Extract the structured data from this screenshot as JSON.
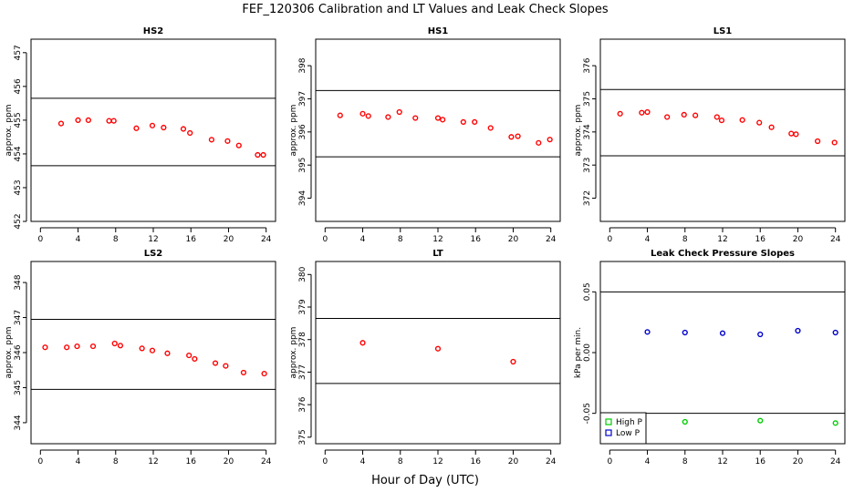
{
  "title": "FEF_120306  Calibration and LT Values and Leak Check Slopes",
  "xlabel": "Hour of Day (UTC)",
  "chart_data": [
    {
      "type": "scatter",
      "title": "HS2",
      "ylabel": "approx. ppm",
      "xlim": [
        -1,
        25
      ],
      "ylim": [
        452,
        457.4
      ],
      "xticks": [
        0,
        4,
        8,
        12,
        16,
        20,
        24
      ],
      "yticks": [
        452,
        453,
        454,
        455,
        456,
        457
      ],
      "hlines": [
        453.65,
        455.65
      ],
      "series": [
        {
          "color": "#ff0000",
          "x": [
            2.2,
            4.0,
            5.1,
            7.3,
            7.8,
            10.2,
            11.9,
            13.1,
            15.2,
            15.9,
            18.2,
            19.9,
            21.1,
            23.1,
            23.7
          ],
          "y": [
            454.9,
            455.0,
            455.0,
            454.98,
            454.98,
            454.76,
            454.84,
            454.78,
            454.74,
            454.62,
            454.42,
            454.38,
            454.25,
            453.97,
            453.97
          ]
        }
      ]
    },
    {
      "type": "scatter",
      "title": "HS1",
      "ylabel": "approx. ppm",
      "xlim": [
        -1,
        25
      ],
      "ylim": [
        393.3,
        398.8
      ],
      "xticks": [
        0,
        4,
        8,
        12,
        16,
        20,
        24
      ],
      "yticks": [
        394,
        395,
        396,
        397,
        398
      ],
      "hlines": [
        395.25,
        397.25
      ],
      "series": [
        {
          "color": "#ff0000",
          "x": [
            1.6,
            4.0,
            4.6,
            6.7,
            7.9,
            9.6,
            12.0,
            12.5,
            14.7,
            15.9,
            17.6,
            19.8,
            20.5,
            22.7,
            23.9
          ],
          "y": [
            396.5,
            396.55,
            396.48,
            396.45,
            396.6,
            396.42,
            396.42,
            396.37,
            396.3,
            396.3,
            396.12,
            395.85,
            395.87,
            395.67,
            395.77
          ]
        }
      ]
    },
    {
      "type": "scatter",
      "title": "LS1",
      "ylabel": "approx. ppm",
      "xlim": [
        -1,
        25
      ],
      "ylim": [
        371.3,
        376.8
      ],
      "xticks": [
        0,
        4,
        8,
        12,
        16,
        20,
        24
      ],
      "yticks": [
        372,
        373,
        374,
        375,
        376
      ],
      "hlines": [
        373.28,
        375.28
      ],
      "series": [
        {
          "color": "#ff0000",
          "x": [
            1.1,
            3.4,
            4.0,
            6.1,
            7.9,
            9.1,
            11.4,
            11.9,
            14.1,
            15.9,
            17.2,
            19.3,
            19.8,
            22.1,
            23.9
          ],
          "y": [
            374.55,
            374.58,
            374.6,
            374.45,
            374.52,
            374.5,
            374.45,
            374.35,
            374.36,
            374.28,
            374.14,
            373.95,
            373.93,
            373.72,
            373.68
          ]
        }
      ]
    },
    {
      "type": "scatter",
      "title": "LS2",
      "ylabel": "approx. ppm",
      "xlim": [
        -1,
        25
      ],
      "ylim": [
        343.4,
        348.6
      ],
      "xticks": [
        0,
        4,
        8,
        12,
        16,
        20,
        24
      ],
      "yticks": [
        344,
        345,
        346,
        347,
        348
      ],
      "hlines": [
        344.95,
        346.95
      ],
      "series": [
        {
          "color": "#ff0000",
          "x": [
            0.5,
            2.8,
            3.9,
            5.6,
            7.9,
            8.5,
            10.8,
            11.9,
            13.5,
            15.8,
            16.4,
            18.6,
            19.7,
            21.6,
            23.8
          ],
          "y": [
            346.15,
            346.15,
            346.18,
            346.18,
            346.26,
            346.2,
            346.12,
            346.06,
            345.98,
            345.92,
            345.82,
            345.7,
            345.62,
            345.43,
            345.4
          ]
        }
      ]
    },
    {
      "type": "scatter",
      "title": "LT",
      "ylabel": "approx. ppm",
      "xlim": [
        -1,
        25
      ],
      "ylim": [
        374.8,
        380.4
      ],
      "xticks": [
        0,
        4,
        8,
        12,
        16,
        20,
        24
      ],
      "yticks": [
        375,
        376,
        377,
        378,
        379,
        380
      ],
      "hlines": [
        376.65,
        378.65
      ],
      "series": [
        {
          "color": "#ff0000",
          "x": [
            4.0,
            12.0,
            20.0
          ],
          "y": [
            377.9,
            377.72,
            377.32
          ]
        }
      ]
    },
    {
      "type": "scatter",
      "title": "Leak Check Pressure Slopes",
      "ylabel": "kPa per min.",
      "xlim": [
        -1,
        25
      ],
      "ylim": [
        -0.075,
        0.075
      ],
      "xticks": [
        0,
        4,
        8,
        12,
        16,
        20,
        24
      ],
      "yticks": [
        -0.05,
        0.0,
        0.05
      ],
      "ytick_labels": [
        "-0.05",
        "0.00",
        "0.05"
      ],
      "hlines": [
        -0.05,
        0.05
      ],
      "legend": {
        "position": "bottom-left"
      },
      "series": [
        {
          "name": "High P",
          "color": "#00cc00",
          "x": [
            8.0,
            16.0,
            24.0
          ],
          "y": [
            -0.057,
            -0.056,
            -0.058
          ]
        },
        {
          "name": "Low P",
          "color": "#0000cc",
          "x": [
            4.0,
            8.0,
            12.0,
            16.0,
            20.0,
            24.0
          ],
          "y": [
            0.017,
            0.0165,
            0.016,
            0.015,
            0.018,
            0.0165
          ]
        }
      ]
    }
  ]
}
